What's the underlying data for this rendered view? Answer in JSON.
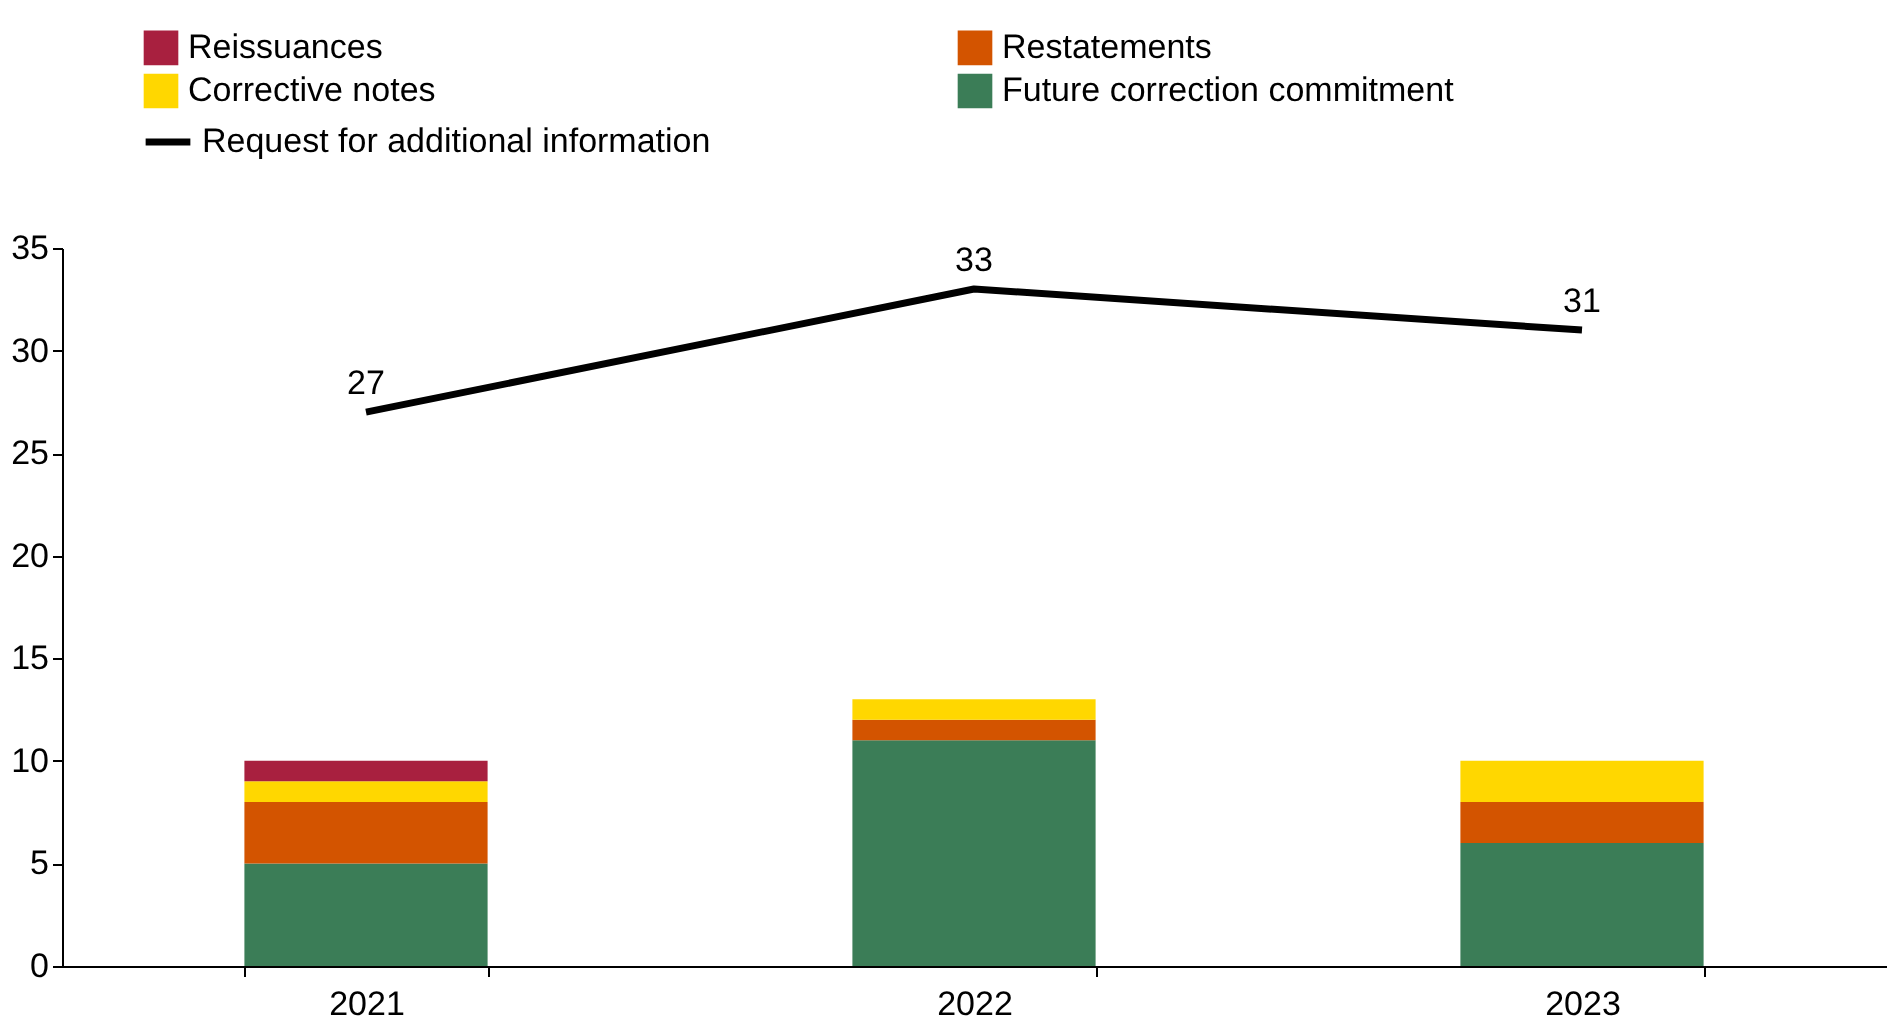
{
  "chart_data": {
    "type": "bar",
    "stacked": true,
    "categories": [
      "2021",
      "2022",
      "2023"
    ],
    "series": [
      {
        "name": "Future correction commitment",
        "color": "#3b7d57",
        "values": [
          5,
          11,
          6
        ]
      },
      {
        "name": "Restatements",
        "color": "#d35400",
        "values": [
          3,
          1,
          2
        ]
      },
      {
        "name": "Corrective notes",
        "color": "#ffd700",
        "values": [
          1,
          1,
          2
        ]
      },
      {
        "name": "Reissuances",
        "color": "#a8203f",
        "values": [
          1,
          0,
          0
        ]
      },
      {
        "name": "Request for additional information",
        "type": "line",
        "color": "#000000",
        "values": [
          27,
          33,
          31
        ],
        "value_labels": [
          "27",
          "33",
          "31"
        ]
      }
    ],
    "ylim": [
      0,
      35
    ],
    "yticks": [
      0,
      5,
      10,
      15,
      20,
      25,
      30,
      35
    ],
    "grid": false,
    "legend": "top left"
  }
}
